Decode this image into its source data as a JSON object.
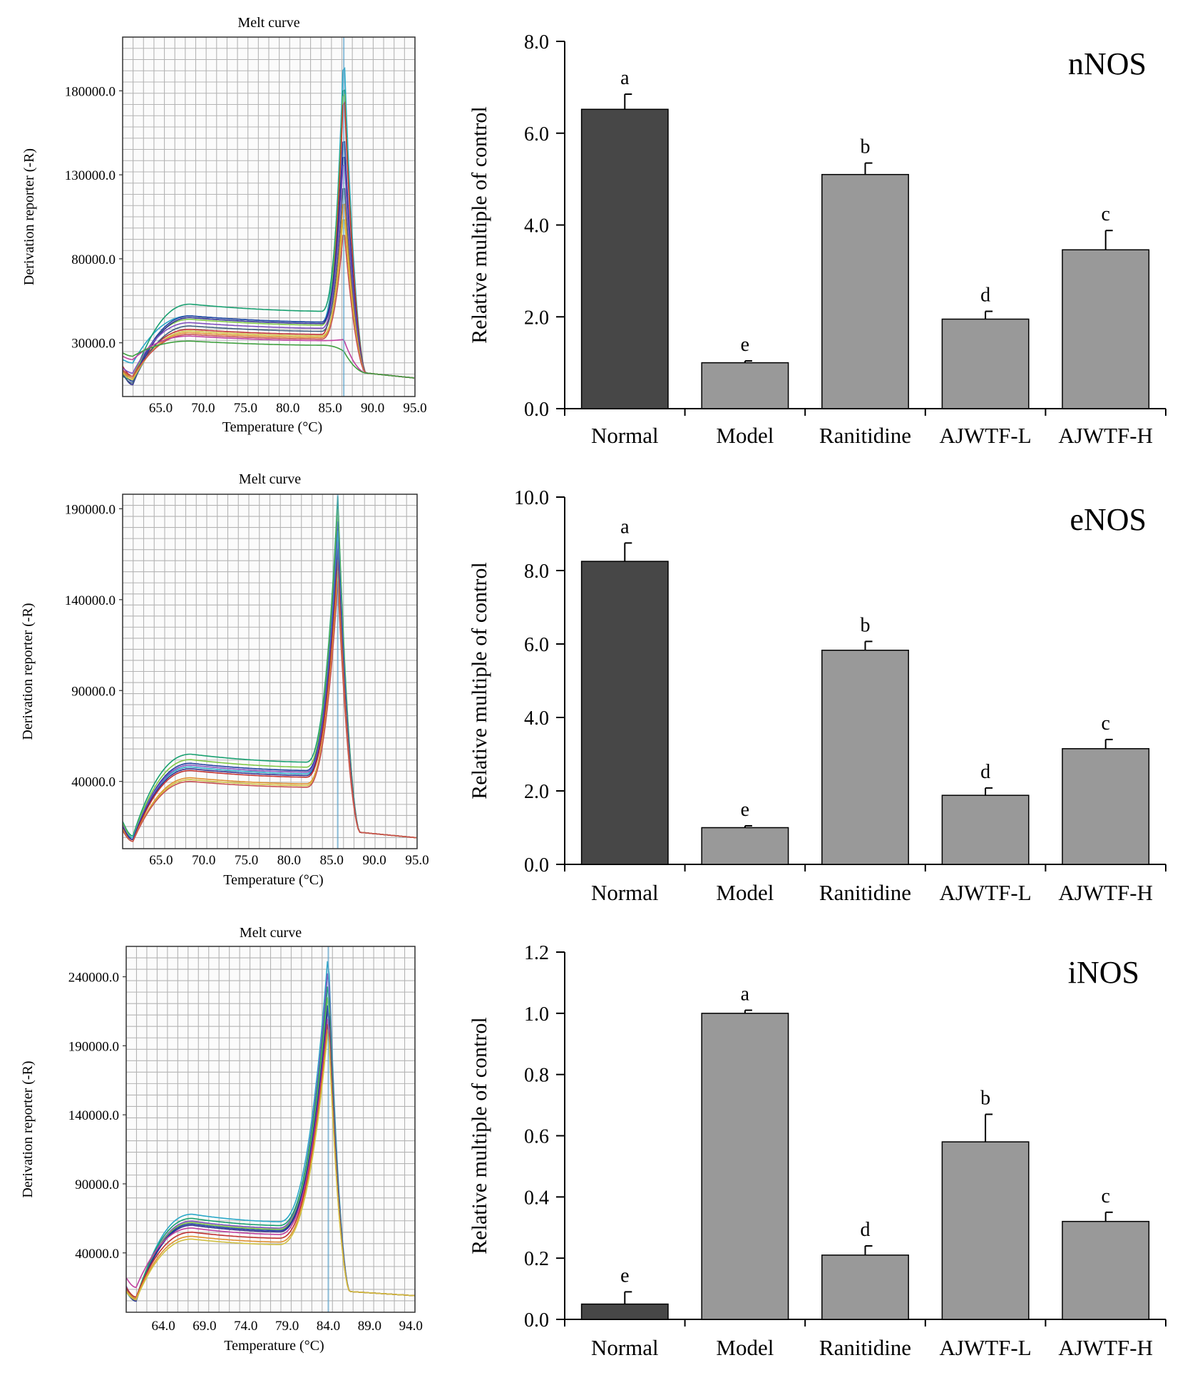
{
  "chart_data": [
    {
      "type": "line",
      "panel": "nNOS-melt",
      "title": "Melt curve",
      "xlabel": "Temperature (°C)",
      "ylabel": "Derivation reporter (-R)",
      "xlim": [
        60.5,
        95.0
      ],
      "ylim": [
        -2000,
        212000
      ],
      "xticks": [
        65.0,
        70.0,
        75.0,
        80.0,
        85.0,
        90.0,
        95.0
      ],
      "xtick_labels": [
        "65.0",
        "70.0",
        "75.0",
        "80.0",
        "85.0",
        "90.0",
        "95.0"
      ],
      "yticks": [
        30000,
        80000,
        130000,
        180000
      ],
      "ytick_labels": [
        "30000.0",
        "80000.0",
        "130000.0",
        "180000.0"
      ],
      "grid": true,
      "peak_temperature": 86.6,
      "plateau_end_temperature": 84.0,
      "series": [
        {
          "color": "#2aa8c8",
          "start": 20000,
          "min_y": 18000,
          "plateau": 46000,
          "peak": 207000
        },
        {
          "color": "#18a070",
          "start": 10000,
          "min_y": 8000,
          "plateau": 53000,
          "peak": 193000
        },
        {
          "color": "#7fc846",
          "start": 13000,
          "min_y": 10000,
          "plateau": 44000,
          "peak": 190000
        },
        {
          "color": "#c03030",
          "start": 16000,
          "min_y": 10000,
          "plateau": 38000,
          "peak": 185000
        },
        {
          "color": "#2040a0",
          "start": 14000,
          "min_y": 7000,
          "plateau": 46000,
          "peak": 160000
        },
        {
          "color": "#303090",
          "start": 12000,
          "min_y": 5000,
          "plateau": 45000,
          "peak": 150000
        },
        {
          "color": "#8050c0",
          "start": 15000,
          "min_y": 12000,
          "plateau": 42000,
          "peak": 145000
        },
        {
          "color": "#406080",
          "start": 11000,
          "min_y": 6000,
          "plateau": 40000,
          "peak": 130000
        },
        {
          "color": "#e09030",
          "start": 13000,
          "min_y": 9000,
          "plateau": 36000,
          "peak": 120000
        },
        {
          "color": "#d0c040",
          "start": 12000,
          "min_y": 8000,
          "plateau": 37000,
          "peak": 110000
        },
        {
          "color": "#c85050",
          "start": 14000,
          "min_y": 10000,
          "plateau": 35000,
          "peak": 100000
        },
        {
          "color": "#c040a0",
          "start": 22000,
          "min_y": 20000,
          "plateau": 34000,
          "peak": 32000
        },
        {
          "color": "#40a040",
          "start": 24000,
          "min_y": 22000,
          "plateau": 31000,
          "peak": 25000
        }
      ]
    },
    {
      "type": "bar",
      "panel": "nNOS",
      "title": "nNOS",
      "ylabel": "Relative multiple of control",
      "categories": [
        "Normal",
        "Model",
        "Ranitidine",
        "AJWTF-L",
        "AJWTF-H"
      ],
      "values": [
        6.52,
        1.0,
        5.1,
        1.95,
        3.46
      ],
      "errors": [
        0.33,
        0.04,
        0.25,
        0.17,
        0.42
      ],
      "letters": [
        "a",
        "e",
        "b",
        "d",
        "c"
      ],
      "colors": [
        "#474747",
        "#999999",
        "#999999",
        "#999999",
        "#999999"
      ],
      "ylim": [
        0,
        8
      ],
      "yticks": [
        0,
        2,
        4,
        6,
        8
      ],
      "ytick_labels": [
        "0.0",
        "2.0",
        "4.0",
        "6.0",
        "8.0"
      ]
    },
    {
      "type": "line",
      "panel": "eNOS-melt",
      "title": "Melt curve",
      "xlabel": "Temperature (°C)",
      "ylabel": "Derivation reporter (-R)",
      "xlim": [
        60.5,
        95.0
      ],
      "ylim": [
        3000,
        198000
      ],
      "xticks": [
        65.0,
        70.0,
        75.0,
        80.0,
        85.0,
        90.0,
        95.0
      ],
      "xtick_labels": [
        "65.0",
        "70.0",
        "75.0",
        "80.0",
        "85.0",
        "90.0",
        "95.0"
      ],
      "yticks": [
        40000,
        90000,
        140000,
        190000
      ],
      "ytick_labels": [
        "40000.0",
        "90000.0",
        "140000.0",
        "190000.0"
      ],
      "grid": true,
      "peak_temperature": 85.7,
      "plateau_end_temperature": 82.0,
      "series": [
        {
          "color": "#18a070",
          "start": 18000,
          "min_y": 10000,
          "plateau": 55000,
          "peak": 197000
        },
        {
          "color": "#7fc846",
          "start": 17000,
          "min_y": 9000,
          "plateau": 52000,
          "peak": 190000
        },
        {
          "color": "#2040a0",
          "start": 16000,
          "min_y": 8000,
          "plateau": 50000,
          "peak": 183000
        },
        {
          "color": "#2aa8c8",
          "start": 15000,
          "min_y": 9000,
          "plateau": 48000,
          "peak": 178000
        },
        {
          "color": "#8050c0",
          "start": 16000,
          "min_y": 8000,
          "plateau": 49000,
          "peak": 172000
        },
        {
          "color": "#303090",
          "start": 15000,
          "min_y": 8000,
          "plateau": 47000,
          "peak": 168000
        },
        {
          "color": "#c03030",
          "start": 14000,
          "min_y": 7000,
          "plateau": 46000,
          "peak": 162000
        },
        {
          "color": "#e09030",
          "start": 14000,
          "min_y": 7000,
          "plateau": 42000,
          "peak": 156000
        },
        {
          "color": "#d0c040",
          "start": 13000,
          "min_y": 7000,
          "plateau": 41000,
          "peak": 152000
        },
        {
          "color": "#c85050",
          "start": 13000,
          "min_y": 7000,
          "plateau": 40000,
          "peak": 150000
        }
      ]
    },
    {
      "type": "bar",
      "panel": "eNOS",
      "title": "eNOS",
      "ylabel": "Relative multiple of control",
      "categories": [
        "Normal",
        "Model",
        "Ranitidine",
        "AJWTF-L",
        "AJWTF-H"
      ],
      "values": [
        8.25,
        1.0,
        5.83,
        1.88,
        3.15
      ],
      "errors": [
        0.5,
        0.05,
        0.24,
        0.2,
        0.25
      ],
      "letters": [
        "a",
        "e",
        "b",
        "d",
        "c"
      ],
      "colors": [
        "#474747",
        "#999999",
        "#999999",
        "#999999",
        "#999999"
      ],
      "ylim": [
        0,
        10
      ],
      "yticks": [
        0,
        2,
        4,
        6,
        8,
        10
      ],
      "ytick_labels": [
        "0.0",
        "2.0",
        "4.0",
        "6.0",
        "8.0",
        "10.0"
      ]
    },
    {
      "type": "line",
      "panel": "iNOS-melt",
      "title": "Melt curve",
      "xlabel": "Temperature (°C)",
      "ylabel": "Derivation reporter (-R)",
      "xlim": [
        59.5,
        94.5
      ],
      "ylim": [
        -3000,
        262000
      ],
      "xticks": [
        64.0,
        69.0,
        74.0,
        79.0,
        84.0,
        89.0,
        94.0
      ],
      "xtick_labels": [
        "64.0",
        "69.0",
        "74.0",
        "79.0",
        "84.0",
        "89.0",
        "94.0"
      ],
      "yticks": [
        40000,
        90000,
        140000,
        190000,
        240000
      ],
      "ytick_labels": [
        "40000.0",
        "90000.0",
        "140000.0",
        "190000.0",
        "240000.0"
      ],
      "grid": true,
      "peak_temperature": 84.0,
      "plateau_end_temperature": 78.0,
      "series": [
        {
          "color": "#2aa8c8",
          "start": 12000,
          "min_y": 5000,
          "plateau": 68000,
          "peak": 259000
        },
        {
          "color": "#8050c0",
          "start": 16000,
          "min_y": 6000,
          "plateau": 63000,
          "peak": 250000
        },
        {
          "color": "#18a070",
          "start": 14000,
          "min_y": 7000,
          "plateau": 65000,
          "peak": 240000
        },
        {
          "color": "#7fc846",
          "start": 13000,
          "min_y": 6000,
          "plateau": 62000,
          "peak": 232000
        },
        {
          "color": "#2040a0",
          "start": 14000,
          "min_y": 6000,
          "plateau": 61000,
          "peak": 226000
        },
        {
          "color": "#303090",
          "start": 13000,
          "min_y": 5000,
          "plateau": 60000,
          "peak": 222000
        },
        {
          "color": "#c040a0",
          "start": 22000,
          "min_y": 15000,
          "plateau": 58000,
          "peak": 216000
        },
        {
          "color": "#c03030",
          "start": 15000,
          "min_y": 8000,
          "plateau": 55000,
          "peak": 212000
        },
        {
          "color": "#e09030",
          "start": 13000,
          "min_y": 7000,
          "plateau": 52000,
          "peak": 208000
        },
        {
          "color": "#d0c040",
          "start": 12000,
          "min_y": 6000,
          "plateau": 50000,
          "peak": 205000
        }
      ]
    },
    {
      "type": "bar",
      "panel": "iNOS",
      "title": "iNOS",
      "ylabel": "Relative multiple of control",
      "categories": [
        "Normal",
        "Model",
        "Ranitidine",
        "AJWTF-L",
        "AJWTF-H"
      ],
      "values": [
        0.05,
        1.0,
        0.21,
        0.58,
        0.32
      ],
      "errors": [
        0.04,
        0.01,
        0.03,
        0.09,
        0.03
      ],
      "letters": [
        "e",
        "a",
        "d",
        "b",
        "c"
      ],
      "colors": [
        "#474747",
        "#999999",
        "#999999",
        "#999999",
        "#999999"
      ],
      "ylim": [
        0,
        1.2
      ],
      "yticks": [
        0,
        0.2,
        0.4,
        0.6,
        0.8,
        1.0,
        1.2
      ],
      "ytick_labels": [
        "0.0",
        "0.2",
        "0.4",
        "0.6",
        "0.8",
        "1.0",
        "1.2"
      ]
    }
  ]
}
